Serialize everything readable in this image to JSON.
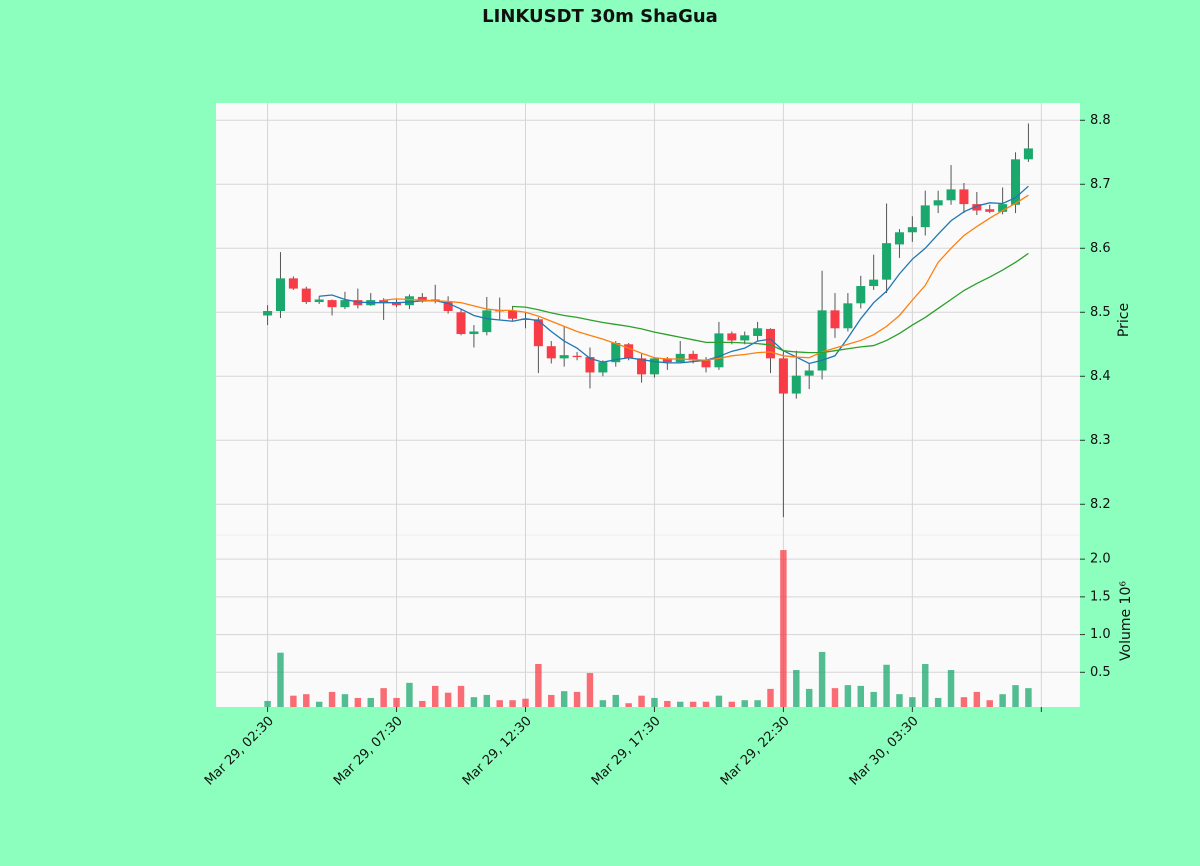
{
  "chart_data": {
    "type": "candlestick",
    "title": "LINKUSDT 30m ShaGua",
    "ylabel": "Price",
    "ylabel2": "Volume  10⁶",
    "up_color": "#1aa86c",
    "down_color": "#f83c47",
    "grid": true,
    "xlim": [
      -4,
      63
    ],
    "xticks": [
      {
        "value": 0,
        "label": "Mar 29, 02:30"
      },
      {
        "value": 10,
        "label": "Mar 29, 07:30"
      },
      {
        "value": 20,
        "label": "Mar 29, 12:30"
      },
      {
        "value": 30,
        "label": "Mar 29, 17:30"
      },
      {
        "value": 40,
        "label": "Mar 29, 22:30"
      },
      {
        "value": 50,
        "label": "Mar 30, 03:30"
      },
      {
        "value": 60,
        "label": null
      }
    ],
    "ylim": [
      8.152,
      8.827
    ],
    "yticks": [
      8.2,
      8.3,
      8.4,
      8.5,
      8.6,
      8.7,
      8.8
    ],
    "y2lim": [
      0.04,
      2.32
    ],
    "y2ticks": [
      0.5,
      {
        "value": 1.0,
        "label": "1.0"
      },
      1.5,
      {
        "value": 2.0,
        "label": "2.0"
      }
    ],
    "open": [
      8.495,
      8.502,
      8.553,
      8.537,
      8.516,
      8.519,
      8.508,
      8.519,
      8.511,
      8.519,
      8.516,
      8.511,
      8.524,
      8.52,
      8.516,
      8.5,
      8.466,
      8.469,
      8.503,
      8.502,
      8.49,
      8.489,
      8.447,
      8.428,
      8.432,
      8.43,
      8.406,
      8.422,
      8.45,
      8.428,
      8.403,
      8.428,
      8.422,
      8.435,
      8.425,
      8.414,
      8.467,
      8.456,
      8.463,
      8.474,
      8.428,
      8.373,
      8.401,
      8.409,
      8.503,
      8.475,
      8.514,
      8.541,
      8.551,
      8.606,
      8.625,
      8.633,
      8.667,
      8.675,
      8.692,
      8.669,
      8.661,
      8.657,
      8.668,
      8.739
    ],
    "high": [
      8.511,
      8.594,
      8.556,
      8.54,
      8.525,
      8.52,
      8.532,
      8.537,
      8.53,
      8.522,
      8.52,
      8.528,
      8.53,
      8.543,
      8.525,
      8.505,
      8.48,
      8.524,
      8.523,
      8.51,
      8.5,
      8.492,
      8.455,
      8.478,
      8.438,
      8.445,
      8.425,
      8.455,
      8.452,
      8.435,
      8.43,
      8.43,
      8.455,
      8.44,
      8.43,
      8.485,
      8.47,
      8.47,
      8.485,
      8.475,
      8.44,
      8.44,
      8.42,
      8.565,
      8.53,
      8.53,
      8.557,
      8.59,
      8.67,
      8.63,
      8.65,
      8.69,
      8.69,
      8.73,
      8.702,
      8.688,
      8.668,
      8.695,
      8.75,
      8.795
    ],
    "low": [
      8.48,
      8.491,
      8.535,
      8.513,
      8.513,
      8.495,
      8.505,
      8.506,
      8.51,
      8.488,
      8.508,
      8.505,
      8.515,
      8.514,
      8.498,
      8.464,
      8.445,
      8.464,
      8.488,
      8.487,
      8.475,
      8.405,
      8.42,
      8.415,
      8.425,
      8.381,
      8.4,
      8.415,
      8.425,
      8.39,
      8.398,
      8.41,
      8.42,
      8.42,
      8.406,
      8.41,
      8.45,
      8.45,
      8.455,
      8.405,
      8.18,
      8.365,
      8.38,
      8.395,
      8.46,
      8.47,
      8.506,
      8.535,
      8.53,
      8.585,
      8.61,
      8.62,
      8.655,
      8.668,
      8.655,
      8.652,
      8.655,
      8.653,
      8.655,
      8.735
    ],
    "close": [
      8.502,
      8.553,
      8.537,
      8.516,
      8.52,
      8.508,
      8.519,
      8.511,
      8.519,
      8.516,
      8.511,
      8.525,
      8.517,
      8.517,
      8.502,
      8.466,
      8.47,
      8.503,
      8.502,
      8.49,
      8.488,
      8.447,
      8.428,
      8.433,
      8.43,
      8.406,
      8.422,
      8.452,
      8.428,
      8.403,
      8.428,
      8.422,
      8.435,
      8.425,
      8.414,
      8.467,
      8.456,
      8.464,
      8.475,
      8.428,
      8.373,
      8.401,
      8.409,
      8.503,
      8.475,
      8.514,
      8.541,
      8.551,
      8.608,
      8.625,
      8.633,
      8.667,
      8.675,
      8.692,
      8.669,
      8.659,
      8.657,
      8.669,
      8.739,
      8.756
    ],
    "volume": [
      0.12,
      0.76,
      0.19,
      0.21,
      0.11,
      0.24,
      0.21,
      0.16,
      0.16,
      0.29,
      0.16,
      0.36,
      0.12,
      0.32,
      0.23,
      0.32,
      0.17,
      0.2,
      0.13,
      0.13,
      0.15,
      0.61,
      0.2,
      0.25,
      0.24,
      0.49,
      0.13,
      0.2,
      0.09,
      0.19,
      0.16,
      0.12,
      0.11,
      0.11,
      0.11,
      0.19,
      0.11,
      0.13,
      0.13,
      0.28,
      2.12,
      0.53,
      0.28,
      0.77,
      0.29,
      0.33,
      0.32,
      0.24,
      0.6,
      0.21,
      0.17,
      0.61,
      0.16,
      0.53,
      0.17,
      0.24,
      0.13,
      0.21,
      0.33,
      0.29
    ],
    "moving_averages": [
      {
        "color": "#1f77b4",
        "values": [
          null,
          null,
          null,
          null,
          8.525,
          8.527,
          8.52,
          8.516,
          8.515,
          8.515,
          8.515,
          8.516,
          8.518,
          8.518,
          8.514,
          8.505,
          8.495,
          8.49,
          8.488,
          8.486,
          8.49,
          8.487,
          8.47,
          8.455,
          8.444,
          8.428,
          8.422,
          8.426,
          8.429,
          8.426,
          8.423,
          8.421,
          8.421,
          8.423,
          8.425,
          8.431,
          8.439,
          8.444,
          8.455,
          8.458,
          8.44,
          8.43,
          8.42,
          8.425,
          8.432,
          8.46,
          8.49,
          8.515,
          8.533,
          8.56,
          8.583,
          8.6,
          8.622,
          8.643,
          8.657,
          8.666,
          8.671,
          8.67,
          8.679,
          8.697
        ]
      },
      {
        "color": "#ff7f0e",
        "values": [
          null,
          null,
          null,
          null,
          null,
          null,
          null,
          null,
          null,
          8.519,
          8.521,
          8.52,
          8.519,
          8.518,
          8.517,
          8.515,
          8.51,
          8.505,
          8.503,
          8.503,
          8.5,
          8.494,
          8.486,
          8.478,
          8.47,
          8.464,
          8.458,
          8.451,
          8.444,
          8.436,
          8.429,
          8.427,
          8.427,
          8.426,
          8.425,
          8.428,
          8.432,
          8.434,
          8.437,
          8.438,
          8.432,
          8.43,
          8.429,
          8.438,
          8.444,
          8.45,
          8.456,
          8.465,
          8.478,
          8.495,
          8.519,
          8.542,
          8.578,
          8.6,
          8.62,
          8.634,
          8.647,
          8.659,
          8.67,
          8.683
        ]
      },
      {
        "color": "#2ca02c",
        "values": [
          null,
          null,
          null,
          null,
          null,
          null,
          null,
          null,
          null,
          null,
          null,
          null,
          null,
          null,
          null,
          null,
          null,
          null,
          null,
          8.509,
          8.508,
          8.504,
          8.499,
          8.495,
          8.492,
          8.488,
          8.484,
          8.481,
          8.478,
          8.474,
          8.469,
          8.465,
          8.461,
          8.457,
          8.453,
          8.453,
          8.453,
          8.452,
          8.451,
          8.449,
          8.44,
          8.438,
          8.437,
          8.437,
          8.44,
          8.443,
          8.446,
          8.448,
          8.456,
          8.467,
          8.48,
          8.492,
          8.506,
          8.52,
          8.534,
          8.545,
          8.555,
          8.566,
          8.578,
          8.592
        ]
      }
    ]
  }
}
